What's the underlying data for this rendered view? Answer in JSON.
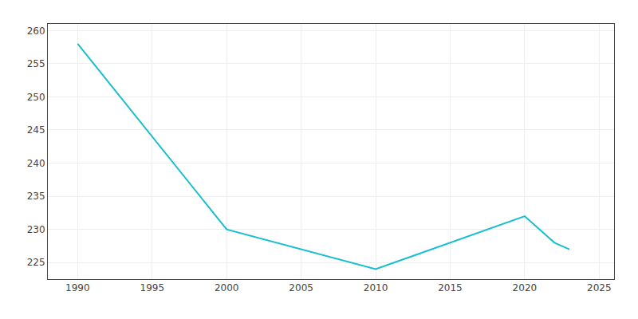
{
  "chart_data": {
    "type": "line",
    "x": [
      1990,
      2000,
      2010,
      2020,
      2022,
      2023
    ],
    "values": [
      258,
      230,
      224,
      232,
      228,
      227
    ],
    "color": "#17BECF",
    "xlim": [
      1988,
      2026
    ],
    "ylim": [
      222.5,
      261
    ],
    "xticks": [
      1990,
      1995,
      2000,
      2005,
      2010,
      2015,
      2020,
      2025
    ],
    "yticks": [
      225,
      230,
      235,
      240,
      245,
      250,
      255,
      260
    ],
    "grid": true
  }
}
